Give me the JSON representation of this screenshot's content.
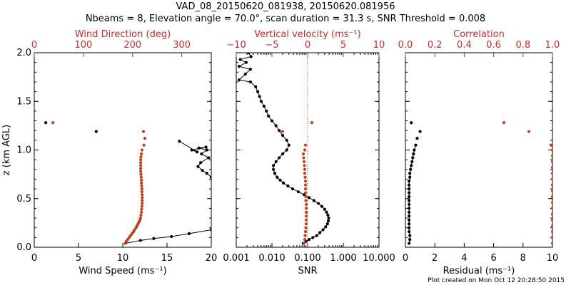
{
  "title_line1": "VAD_08_20150620_081938, 20150620.081956",
  "title_line2": "Nbeams = 8, Elevation angle = 70.0°, scan duration = 31.3 s, SNR Threshold = 0.008",
  "footer": "Plot created on Mon Oct 12 20:28:50 2015",
  "colors": {
    "black": "#000000",
    "red": "#cc2a2a",
    "brown": "#c0401e"
  },
  "chart_data": [
    {
      "type": "scatter",
      "panel": "wind",
      "ylabel": "z (km AGL)",
      "ylim": [
        0,
        2
      ],
      "yticks": [
        "0.0",
        "0.5",
        "1.0",
        "1.5",
        "2.0"
      ],
      "xlabel": "Wind Speed (ms⁻¹)",
      "xlim": [
        0,
        20
      ],
      "xticks": [
        "0",
        "5",
        "10",
        "15",
        "20"
      ],
      "top_xlabel": "Wind Direction (deg)",
      "top_xlim": [
        0,
        360
      ],
      "top_xticks": [
        "0",
        "100",
        "200",
        "300"
      ],
      "series": [
        {
          "color": "black",
          "axis": "bottom",
          "connected": true,
          "points": [
            [
              10.3,
              0.04
            ],
            [
              12.0,
              0.07
            ],
            [
              13.5,
              0.09
            ],
            [
              15.5,
              0.11
            ],
            [
              17.5,
              0.14
            ],
            [
              20.0,
              0.18
            ]
          ]
        },
        {
          "color": "black",
          "axis": "bottom",
          "connected": true,
          "points": [
            [
              20.0,
              0.72
            ],
            [
              19.5,
              0.76
            ],
            [
              19.0,
              0.79
            ],
            [
              18.5,
              0.83
            ],
            [
              18.8,
              0.87
            ],
            [
              19.7,
              0.92
            ],
            [
              18.9,
              0.96
            ],
            [
              19.5,
              1.0
            ],
            [
              18.6,
              1.02
            ],
            [
              19.4,
              1.03
            ],
            [
              17.8,
              1.0
            ],
            [
              18.4,
              0.98
            ],
            [
              16.4,
              1.09
            ]
          ]
        },
        {
          "color": "black",
          "axis": "bottom",
          "connected": false,
          "points": [
            [
              1.3,
              1.28
            ],
            [
              7.0,
              1.19
            ]
          ]
        },
        {
          "color": "brown",
          "axis": "top",
          "connected": false,
          "points": [
            [
              185,
              0.04
            ],
            [
              187,
              0.06
            ],
            [
              190,
              0.08
            ],
            [
              193,
              0.1
            ],
            [
              196,
              0.12
            ],
            [
              199,
              0.14
            ],
            [
              202,
              0.16
            ],
            [
              204,
              0.18
            ],
            [
              207,
              0.2
            ],
            [
              209,
              0.22
            ],
            [
              211,
              0.24
            ],
            [
              213,
              0.26
            ],
            [
              215,
              0.28
            ],
            [
              216,
              0.3
            ],
            [
              217,
              0.33
            ],
            [
              218,
              0.36
            ],
            [
              218.5,
              0.39
            ],
            [
              219,
              0.42
            ],
            [
              219.5,
              0.45
            ],
            [
              219.5,
              0.48
            ],
            [
              219.5,
              0.51
            ],
            [
              219.5,
              0.54
            ],
            [
              219,
              0.57
            ],
            [
              219,
              0.6
            ],
            [
              218.5,
              0.63
            ],
            [
              218,
              0.66
            ],
            [
              218,
              0.69
            ],
            [
              217.5,
              0.72
            ],
            [
              217,
              0.75
            ],
            [
              216.5,
              0.78
            ],
            [
              216.5,
              0.81
            ],
            [
              216.5,
              0.84
            ],
            [
              216.5,
              0.87
            ],
            [
              216.5,
              0.9
            ],
            [
              217,
              0.93
            ],
            [
              218,
              0.96
            ],
            [
              219,
              1.0
            ],
            [
              223,
              1.05
            ],
            [
              225,
              1.12
            ],
            [
              222,
              1.19
            ],
            [
              38,
              1.28
            ]
          ]
        }
      ]
    },
    {
      "type": "scatter",
      "panel": "snr",
      "ylim": [
        0,
        2
      ],
      "xlabel": "SNR",
      "xscale": "log",
      "xlim": [
        0.001,
        10
      ],
      "xticks": [
        "0.001",
        "0.010",
        "0.100",
        "1.000",
        "10.000"
      ],
      "top_xlabel": "Vertical velocity (ms⁻¹)",
      "top_xlim": [
        -10,
        10
      ],
      "top_xticks": [
        "−10",
        "−5",
        "0",
        "5",
        "10"
      ],
      "reference_line": {
        "axis": "top",
        "value": 0,
        "style": "dotted",
        "color": "red"
      },
      "series": [
        {
          "color": "black",
          "axis": "bottom",
          "connected": true,
          "points": [
            [
              0.075,
              0.04
            ],
            [
              0.09,
              0.06
            ],
            [
              0.11,
              0.08
            ],
            [
              0.14,
              0.1
            ],
            [
              0.18,
              0.12
            ],
            [
              0.22,
              0.15
            ],
            [
              0.27,
              0.18
            ],
            [
              0.32,
              0.21
            ],
            [
              0.36,
              0.24
            ],
            [
              0.38,
              0.27
            ],
            [
              0.39,
              0.3
            ],
            [
              0.37,
              0.33
            ],
            [
              0.34,
              0.36
            ],
            [
              0.3,
              0.39
            ],
            [
              0.25,
              0.42
            ],
            [
              0.2,
              0.45
            ],
            [
              0.15,
              0.48
            ],
            [
              0.11,
              0.51
            ],
            [
              0.08,
              0.54
            ],
            [
              0.055,
              0.57
            ],
            [
              0.038,
              0.6
            ],
            [
              0.028,
              0.63
            ],
            [
              0.021,
              0.66
            ],
            [
              0.017,
              0.69
            ],
            [
              0.014,
              0.72
            ],
            [
              0.012,
              0.76
            ],
            [
              0.011,
              0.8
            ],
            [
              0.011,
              0.84
            ],
            [
              0.013,
              0.88
            ],
            [
              0.016,
              0.92
            ],
            [
              0.02,
              0.96
            ],
            [
              0.026,
              1.0
            ],
            [
              0.03,
              1.05
            ],
            [
              0.026,
              1.1
            ],
            [
              0.02,
              1.15
            ],
            [
              0.016,
              1.2
            ],
            [
              0.013,
              1.25
            ],
            [
              0.01,
              1.3
            ],
            [
              0.008,
              1.35
            ],
            [
              0.007,
              1.4
            ],
            [
              0.006,
              1.45
            ],
            [
              0.005,
              1.5
            ],
            [
              0.0045,
              1.55
            ],
            [
              0.004,
              1.6
            ],
            [
              0.0035,
              1.65
            ],
            [
              0.0025,
              1.7
            ],
            [
              0.0012,
              1.72
            ],
            [
              0.0018,
              1.78
            ],
            [
              0.0025,
              1.83
            ],
            [
              0.0012,
              1.86
            ],
            [
              0.0019,
              1.9
            ],
            [
              0.0013,
              1.93
            ],
            [
              0.0026,
              1.96
            ],
            [
              0.0022,
              2.0
            ]
          ]
        },
        {
          "color": "brown",
          "axis": "top",
          "connected": false,
          "points": [
            [
              -0.5,
              0.04
            ],
            [
              -0.4,
              0.08
            ],
            [
              -0.35,
              0.12
            ],
            [
              -0.3,
              0.16
            ],
            [
              -0.25,
              0.2
            ],
            [
              -0.2,
              0.24
            ],
            [
              -0.2,
              0.28
            ],
            [
              -0.2,
              0.32
            ],
            [
              -0.2,
              0.36
            ],
            [
              -0.2,
              0.4
            ],
            [
              -0.2,
              0.44
            ],
            [
              -0.25,
              0.48
            ],
            [
              -0.25,
              0.52
            ],
            [
              -0.3,
              0.56
            ],
            [
              -0.3,
              0.6
            ],
            [
              -0.3,
              0.64
            ],
            [
              -0.3,
              0.68
            ],
            [
              -0.35,
              0.72
            ],
            [
              -0.4,
              0.76
            ],
            [
              -0.4,
              0.8
            ],
            [
              -0.45,
              0.84
            ],
            [
              -0.5,
              0.88
            ],
            [
              -0.55,
              0.92
            ],
            [
              -0.6,
              0.96
            ],
            [
              -0.4,
              1.0
            ],
            [
              -0.3,
              1.05
            ],
            [
              -3.5,
              1.19
            ],
            [
              0.6,
              1.28
            ]
          ]
        }
      ]
    },
    {
      "type": "scatter",
      "panel": "residual",
      "ylim": [
        0,
        2
      ],
      "xlabel": "Residual (ms⁻¹)",
      "xlim": [
        0,
        10
      ],
      "xticks": [
        "0",
        "2",
        "4",
        "6",
        "8",
        "10"
      ],
      "top_xlabel": "Correlation",
      "top_xlim": [
        0,
        1
      ],
      "top_xticks": [
        "0.0",
        "0.2",
        "0.4",
        "0.6",
        "0.8",
        "1.0"
      ],
      "series": [
        {
          "color": "black",
          "axis": "bottom",
          "connected": true,
          "points": [
            [
              0.25,
              0.04
            ],
            [
              0.3,
              0.08
            ],
            [
              0.3,
              0.12
            ],
            [
              0.25,
              0.16
            ],
            [
              0.25,
              0.2
            ],
            [
              0.25,
              0.24
            ],
            [
              0.25,
              0.28
            ],
            [
              0.25,
              0.32
            ],
            [
              0.25,
              0.36
            ],
            [
              0.25,
              0.4
            ],
            [
              0.25,
              0.44
            ],
            [
              0.25,
              0.48
            ],
            [
              0.25,
              0.52
            ],
            [
              0.25,
              0.56
            ],
            [
              0.25,
              0.6
            ],
            [
              0.25,
              0.64
            ],
            [
              0.25,
              0.68
            ],
            [
              0.3,
              0.72
            ],
            [
              0.3,
              0.76
            ],
            [
              0.35,
              0.8
            ],
            [
              0.4,
              0.84
            ],
            [
              0.45,
              0.88
            ],
            [
              0.5,
              0.92
            ],
            [
              0.55,
              0.96
            ],
            [
              0.6,
              1.0
            ],
            [
              0.7,
              1.05
            ]
          ]
        },
        {
          "color": "black",
          "axis": "bottom",
          "connected": false,
          "points": [
            [
              0.8,
              1.12
            ],
            [
              1.0,
              1.19
            ],
            [
              0.4,
              1.28
            ]
          ]
        },
        {
          "color": "brown",
          "axis": "top",
          "connected": false,
          "points": [
            [
              1.0,
              0.04
            ],
            [
              1.0,
              0.1
            ],
            [
              1.0,
              0.16
            ],
            [
              1.0,
              0.22
            ],
            [
              1.0,
              0.28
            ],
            [
              1.0,
              0.34
            ],
            [
              1.0,
              0.4
            ],
            [
              1.0,
              0.46
            ],
            [
              1.0,
              0.52
            ],
            [
              1.0,
              0.58
            ],
            [
              1.0,
              0.64
            ],
            [
              1.0,
              0.7
            ],
            [
              1.0,
              0.76
            ],
            [
              1.0,
              0.82
            ],
            [
              1.0,
              0.88
            ],
            [
              1.0,
              0.94
            ],
            [
              1.0,
              1.0
            ],
            [
              0.99,
              1.05
            ],
            [
              0.84,
              1.19
            ],
            [
              0.67,
              1.28
            ]
          ]
        }
      ]
    }
  ]
}
